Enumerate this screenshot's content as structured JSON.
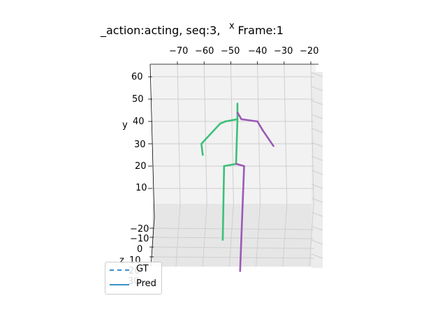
{
  "chart_data": {
    "type": "line",
    "projection": "3d",
    "title": "_action:acting, seq:3, ",
    "title_suffix": "Frame:1",
    "xlabel": "x",
    "ylabel": "y",
    "zlabel": "z",
    "x_ticks": [
      "−70",
      "−60",
      "−50",
      "−40",
      "−30",
      "−20"
    ],
    "y_ticks": [
      "60",
      "50",
      "40",
      "30",
      "20",
      "10"
    ],
    "z_ticks": [
      "−20",
      "−10",
      "0",
      "10",
      "20",
      "30"
    ],
    "xlim": [
      -75,
      -20
    ],
    "ylim": [
      -5,
      65
    ],
    "grid": true,
    "legend": {
      "placement": "lower-left",
      "entries": [
        {
          "label": "GT",
          "style": "dashed",
          "color": "#3b8fc8"
        },
        {
          "label": "Pred",
          "style": "solid",
          "color": "#3b8fc8"
        }
      ]
    },
    "series": [
      {
        "role": "left",
        "color": "#3cc078",
        "segments": [
          [
            [
              -47.5,
              48
            ],
            [
              -47.5,
              41
            ]
          ],
          [
            [
              -47.5,
              41
            ],
            [
              -52,
              40
            ]
          ],
          [
            [
              -52,
              40
            ],
            [
              -54,
              39
            ]
          ],
          [
            [
              -54,
              39
            ],
            [
              -61,
              30
            ]
          ],
          [
            [
              -61,
              30
            ],
            [
              -60.5,
              25
            ]
          ],
          [
            [
              -47.5,
              41
            ],
            [
              -48,
              21
            ]
          ],
          [
            [
              -48,
              21
            ],
            [
              -52.5,
              20
            ]
          ],
          [
            [
              -52.5,
              20
            ],
            [
              -53,
              -13
            ]
          ]
        ]
      },
      {
        "role": "right",
        "color": "#9b59b6",
        "segments": [
          [
            [
              -47.5,
              44
            ],
            [
              -46,
              41
            ]
          ],
          [
            [
              -46,
              41
            ],
            [
              -40,
              40
            ]
          ],
          [
            [
              -40,
              40
            ],
            [
              -38,
              36
            ]
          ],
          [
            [
              -38,
              36
            ],
            [
              -34,
              29
            ]
          ],
          [
            [
              -48,
              21
            ],
            [
              -45,
              20
            ]
          ],
          [
            [
              -45,
              20
            ],
            [
              -46.5,
              -27
            ]
          ]
        ]
      }
    ]
  }
}
